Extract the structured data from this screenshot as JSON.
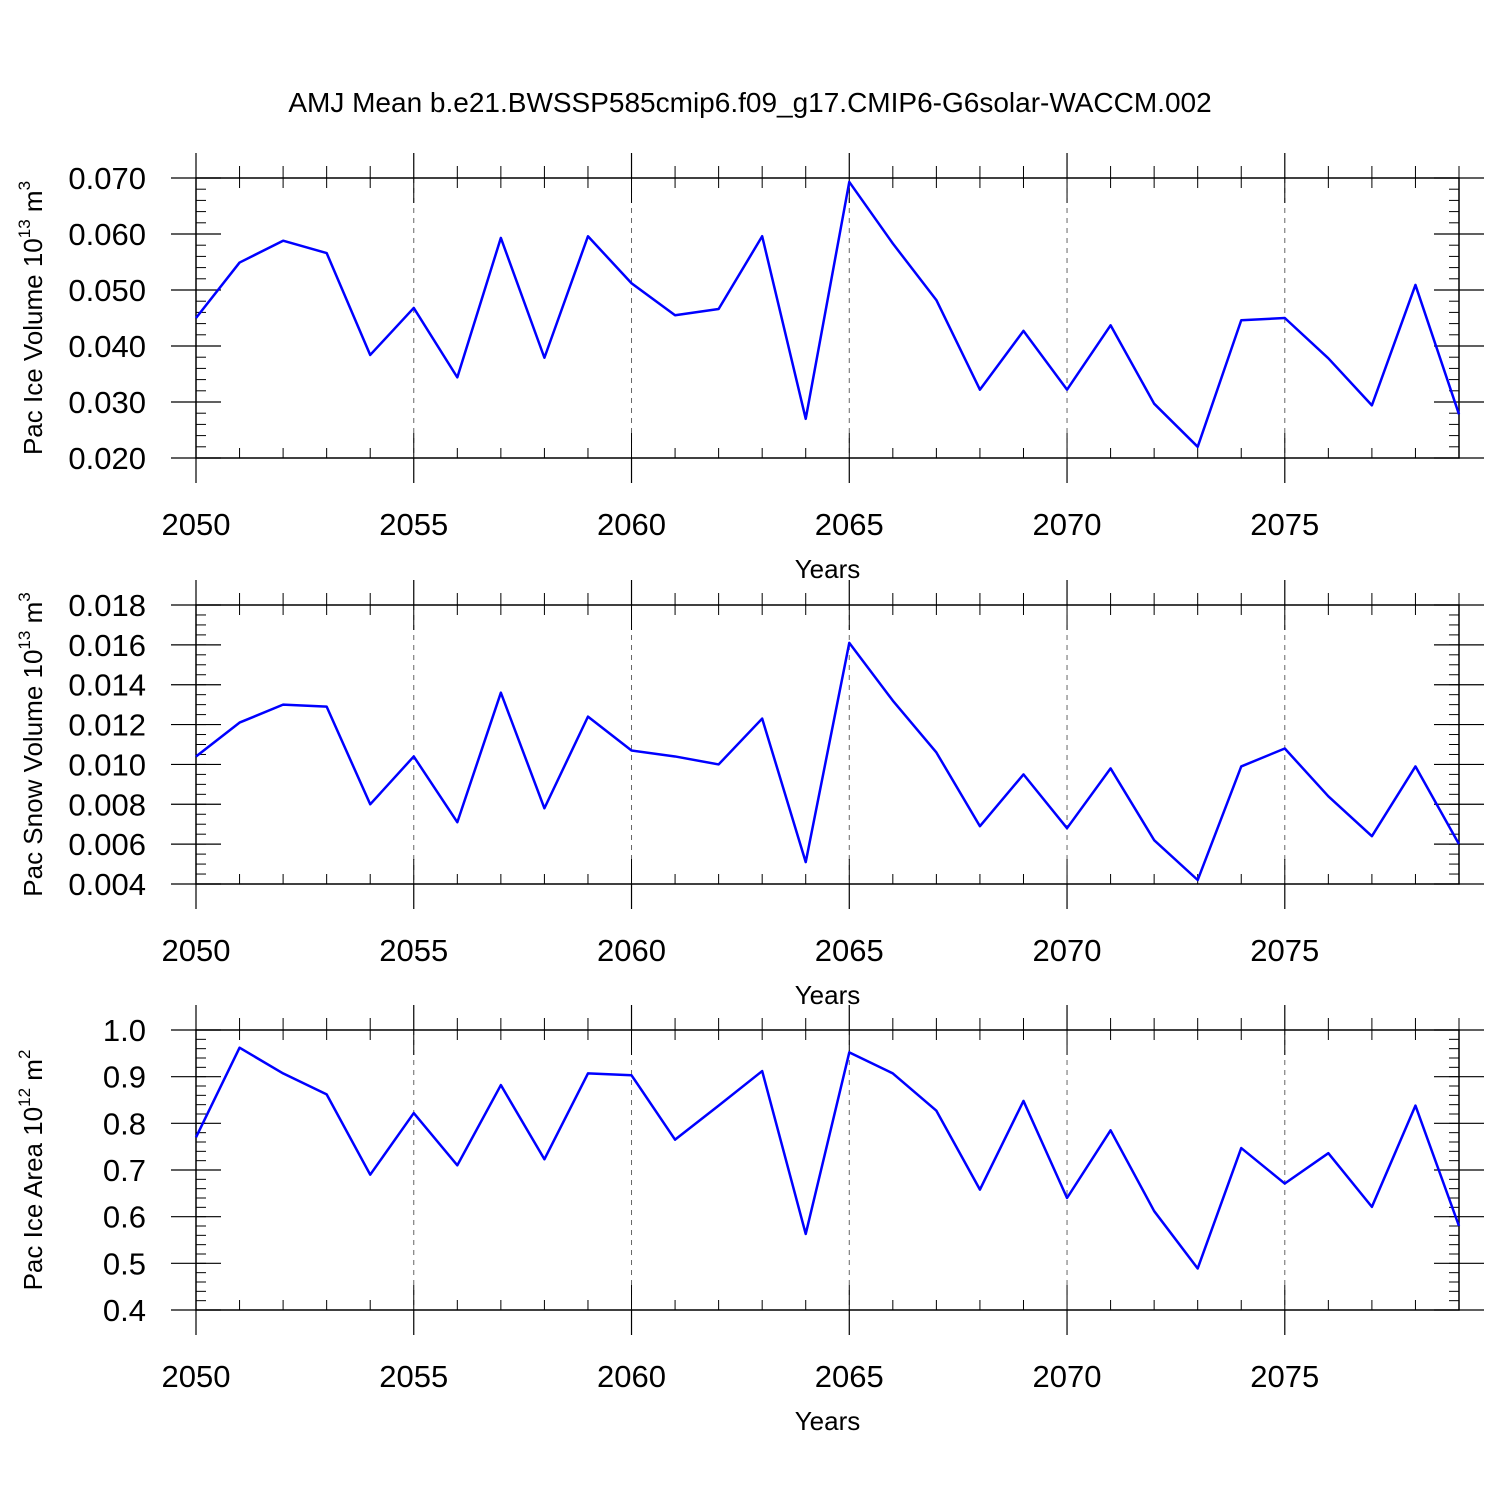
{
  "figure": {
    "title": "AMJ Mean b.e21.BWSSP585cmip6.f09_g17.CMIP6-G6solar-WACCM.002",
    "line_color": "#0000ff"
  },
  "chart_data": [
    {
      "type": "line",
      "xlabel": "Years",
      "ylabel": "Pac Ice Volume 10",
      "ylabel_exp": "13",
      "ylabel_unit": " m",
      "ylabel_unit_exp": "3",
      "xlim": [
        2050,
        2079
      ],
      "ylim": [
        0.02,
        0.07
      ],
      "xticks": [
        2050,
        2055,
        2060,
        2065,
        2070,
        2075
      ],
      "yticks": [
        "0.020",
        "0.030",
        "0.040",
        "0.050",
        "0.060",
        "0.070"
      ],
      "ytick_values": [
        0.02,
        0.03,
        0.04,
        0.05,
        0.06,
        0.07
      ],
      "y_minor_step": 0.002,
      "vgrid": "dashed",
      "x": [
        2050,
        2051,
        2052,
        2053,
        2054,
        2055,
        2056,
        2057,
        2058,
        2059,
        2060,
        2061,
        2062,
        2063,
        2064,
        2065,
        2066,
        2067,
        2068,
        2069,
        2070,
        2071,
        2072,
        2073,
        2074,
        2075,
        2076,
        2077,
        2078,
        2079
      ],
      "series": [
        {
          "values": [
            0.045,
            0.0549,
            0.0588,
            0.0566,
            0.0384,
            0.0468,
            0.0344,
            0.0593,
            0.0379,
            0.0596,
            0.0512,
            0.0455,
            0.0466,
            0.0596,
            0.027,
            0.0693,
            0.0583,
            0.0482,
            0.0322,
            0.0427,
            0.0322,
            0.0437,
            0.0297,
            0.022,
            0.0446,
            0.045,
            0.0378,
            0.0294,
            0.0509,
            0.0278
          ]
        }
      ]
    },
    {
      "type": "line",
      "xlabel": "Years",
      "ylabel": "Pac Snow Volume 10",
      "ylabel_exp": "13",
      "ylabel_unit": " m",
      "ylabel_unit_exp": "3",
      "xlim": [
        2050,
        2079
      ],
      "ylim": [
        0.004,
        0.018
      ],
      "xticks": [
        2050,
        2055,
        2060,
        2065,
        2070,
        2075
      ],
      "yticks": [
        "0.004",
        "0.006",
        "0.008",
        "0.010",
        "0.012",
        "0.014",
        "0.016",
        "0.018"
      ],
      "ytick_values": [
        0.004,
        0.006,
        0.008,
        0.01,
        0.012,
        0.014,
        0.016,
        0.018
      ],
      "y_minor_step": 0.0005,
      "vgrid": "dashed",
      "x": [
        2050,
        2051,
        2052,
        2053,
        2054,
        2055,
        2056,
        2057,
        2058,
        2059,
        2060,
        2061,
        2062,
        2063,
        2064,
        2065,
        2066,
        2067,
        2068,
        2069,
        2070,
        2071,
        2072,
        2073,
        2074,
        2075,
        2076,
        2077,
        2078,
        2079
      ],
      "series": [
        {
          "values": [
            0.0104,
            0.0121,
            0.013,
            0.0129,
            0.008,
            0.0104,
            0.0071,
            0.0136,
            0.0078,
            0.0124,
            0.0107,
            0.0104,
            0.01,
            0.0123,
            0.0051,
            0.0161,
            0.0132,
            0.0106,
            0.0069,
            0.0095,
            0.0068,
            0.0098,
            0.0062,
            0.0042,
            0.0099,
            0.0108,
            0.0084,
            0.0064,
            0.0099,
            0.006
          ]
        }
      ]
    },
    {
      "type": "line",
      "xlabel": "Years",
      "ylabel": "Pac Ice Area 10",
      "ylabel_exp": "12",
      "ylabel_unit": " m",
      "ylabel_unit_exp": "2",
      "xlim": [
        2050,
        2079
      ],
      "ylim": [
        0.4,
        1.0
      ],
      "xticks": [
        2050,
        2055,
        2060,
        2065,
        2070,
        2075
      ],
      "yticks": [
        "0.4",
        "0.5",
        "0.6",
        "0.7",
        "0.8",
        "0.9",
        "1.0"
      ],
      "ytick_values": [
        0.4,
        0.5,
        0.6,
        0.7,
        0.8,
        0.9,
        1.0
      ],
      "y_minor_step": 0.02,
      "vgrid": "dashed",
      "x": [
        2050,
        2051,
        2052,
        2053,
        2054,
        2055,
        2056,
        2057,
        2058,
        2059,
        2060,
        2061,
        2062,
        2063,
        2064,
        2065,
        2066,
        2067,
        2068,
        2069,
        2070,
        2071,
        2072,
        2073,
        2074,
        2075,
        2076,
        2077,
        2078,
        2079
      ],
      "series": [
        {
          "values": [
            0.77,
            0.962,
            0.907,
            0.862,
            0.69,
            0.822,
            0.71,
            0.882,
            0.723,
            0.907,
            0.903,
            0.765,
            0.838,
            0.912,
            0.563,
            0.952,
            0.907,
            0.827,
            0.658,
            0.848,
            0.64,
            0.785,
            0.612,
            0.489,
            0.747,
            0.671,
            0.736,
            0.621,
            0.838,
            0.58
          ]
        }
      ]
    }
  ]
}
